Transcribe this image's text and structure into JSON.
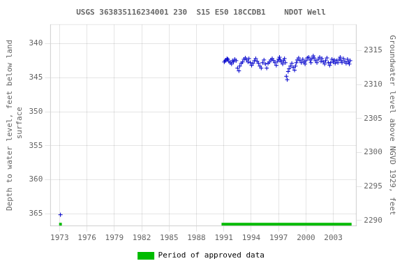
{
  "chart_data": {
    "type": "scatter",
    "title": "USGS 363835116234001 230  S15 E50 18CCDB1    NDOT Well",
    "ylabel": "Depth to water level, feet below land\n surface",
    "y2label": "Groundwater level above NGVD 1929, feet",
    "xlim": [
      1972.0,
      2005.5
    ],
    "xticks": [
      1973,
      1976,
      1979,
      1982,
      1985,
      1988,
      1991,
      1994,
      1997,
      2000,
      2003
    ],
    "ylim": [
      366.8,
      337.2
    ],
    "yticks": [
      340,
      345,
      350,
      355,
      360,
      365
    ],
    "y2lim": [
      2289.2,
      2318.8
    ],
    "y2ticks": [
      2290,
      2295,
      2300,
      2305,
      2310,
      2315
    ],
    "grid": true,
    "legend": "bottom",
    "series": [
      {
        "type": "scatter",
        "color": "#0000cc",
        "marker": "+",
        "x": [
          1991.05,
          1991.15,
          1991.25,
          1991.35,
          1991.45,
          1991.55,
          1991.7,
          1991.85,
          1991.95,
          1992.05,
          1992.2,
          1992.35,
          1992.5,
          1992.65,
          1992.75,
          1992.9,
          1993.05,
          1993.2,
          1993.35,
          1993.5,
          1993.65,
          1993.75,
          1993.9,
          1994.05,
          1994.2,
          1994.35,
          1994.5,
          1994.65,
          1994.8,
          1994.95,
          1995.1,
          1995.25,
          1995.4,
          1995.55,
          1995.7,
          1995.85,
          1996.0,
          1996.15,
          1996.3,
          1996.45,
          1996.6,
          1996.75,
          1996.9,
          1997.0,
          1997.1,
          1997.2,
          1997.3,
          1997.45,
          1997.55,
          1997.65,
          1997.75,
          1997.85,
          1997.95,
          1998.05,
          1998.15,
          1998.3,
          1998.45,
          1998.6,
          1998.75,
          1998.85,
          1998.95,
          1999.05,
          1999.2,
          1999.35,
          1999.5,
          1999.65,
          1999.8,
          1999.9,
          2000.0,
          2000.15,
          2000.3,
          2000.45,
          2000.55,
          2000.65,
          2000.8,
          2000.9,
          2001.05,
          2001.2,
          2001.35,
          2001.5,
          2001.65,
          2001.75,
          2001.9,
          2002.05,
          2002.15,
          2002.3,
          2002.45,
          2002.6,
          2002.7,
          2002.85,
          2003.0,
          2003.1,
          2003.2,
          2003.35,
          2003.5,
          2003.65,
          2003.75,
          2003.85,
          2003.95,
          2004.1,
          2004.25,
          2004.4,
          2004.55,
          2004.65,
          2004.75,
          2004.85,
          1973.1
        ],
        "values": [
          342.7,
          342.5,
          342.4,
          342.2,
          342.3,
          342.6,
          342.8,
          343.0,
          342.5,
          342.7,
          342.3,
          342.5,
          343.6,
          344.0,
          343.3,
          342.9,
          342.7,
          342.3,
          342.1,
          342.4,
          342.7,
          342.2,
          342.8,
          343.2,
          342.9,
          342.5,
          342.2,
          342.6,
          342.9,
          343.3,
          343.6,
          342.8,
          342.4,
          343.0,
          343.6,
          342.9,
          342.7,
          342.4,
          342.2,
          342.5,
          342.8,
          343.2,
          342.6,
          342.3,
          342.0,
          342.4,
          342.7,
          343.0,
          342.5,
          342.2,
          342.8,
          344.8,
          345.3,
          344.1,
          343.7,
          343.3,
          342.9,
          343.5,
          343.9,
          343.3,
          342.8,
          342.4,
          342.1,
          342.5,
          342.8,
          342.3,
          342.7,
          343.0,
          342.5,
          342.1,
          342.0,
          342.4,
          342.8,
          342.2,
          341.8,
          342.1,
          342.5,
          342.8,
          342.3,
          342.0,
          342.6,
          342.2,
          342.7,
          343.0,
          342.5,
          342.1,
          342.8,
          343.2,
          342.8,
          342.3,
          342.7,
          342.4,
          342.9,
          342.5,
          342.8,
          342.3,
          342.0,
          342.5,
          342.8,
          342.2,
          342.6,
          342.9,
          342.3,
          342.7,
          343.0,
          342.5,
          365.15
        ]
      },
      {
        "name": "Period of approved data",
        "type": "bar",
        "color": "#00bb00",
        "y": 366.55,
        "values": [
          [
            1972.95,
            1973.25
          ],
          [
            1990.75,
            2005.0
          ]
        ]
      }
    ]
  }
}
